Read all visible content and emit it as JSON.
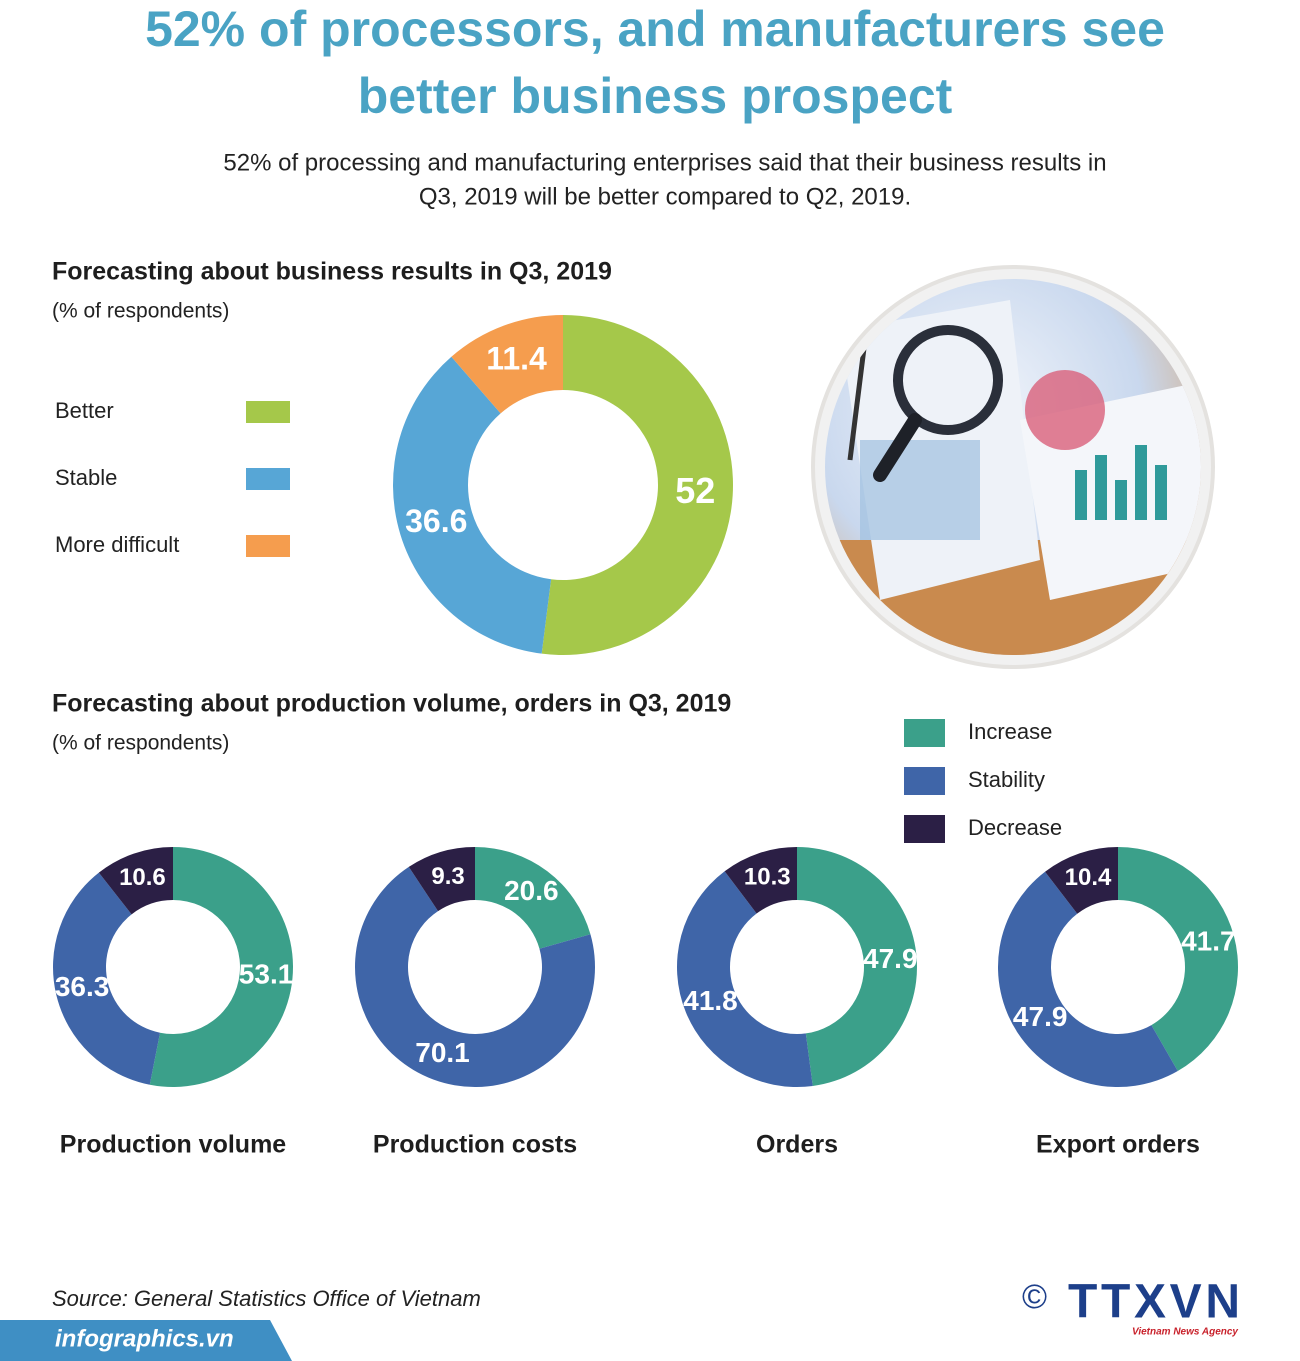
{
  "title": [
    "52% of processors, and manufacturers see",
    "better business prospect"
  ],
  "subtitle": [
    "52% of processing and manufacturing enterprises said that their business results in",
    "Q3, 2019 will be better compared to Q2, 2019."
  ],
  "chart_data": [
    {
      "type": "donut",
      "title": "Forecasting about business results in Q3, 2019",
      "subtitle": "(% of respondents)",
      "categories": [
        "Better",
        "Stable",
        "More difficult"
      ],
      "values": [
        52,
        36.6,
        11.4
      ],
      "colors": [
        "#a5c84a",
        "#57a6d6",
        "#f59d4e"
      ]
    },
    {
      "type": "donut-group",
      "title": "Forecasting about production volume, orders in Q3, 2019",
      "subtitle": "(% of respondents)",
      "categories": [
        "Increase",
        "Stability",
        "Decrease"
      ],
      "colors": [
        "#3ba08a",
        "#3f65a8",
        "#2b1f45"
      ],
      "charts": [
        {
          "title": "Production volume",
          "values": [
            53.1,
            36.3,
            10.6
          ]
        },
        {
          "title": "Production costs",
          "values": [
            20.6,
            70.1,
            9.3
          ]
        },
        {
          "title": "Orders",
          "values": [
            47.9,
            41.8,
            10.3
          ]
        },
        {
          "title": "Export orders",
          "values": [
            41.7,
            47.9,
            10.4
          ]
        }
      ]
    }
  ],
  "footer": {
    "source": "Source: General Statistics Office of Vietnam",
    "site": "infographics.vn",
    "copyright": "©",
    "logo": "TTXVN",
    "agency": "Vietnam News Agency"
  }
}
